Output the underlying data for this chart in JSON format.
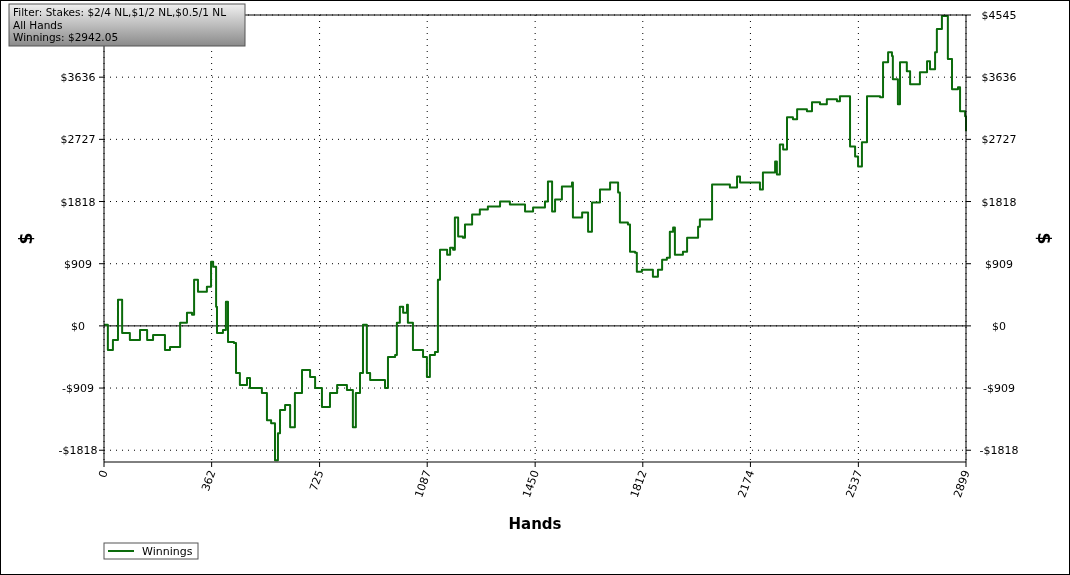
{
  "chart_data": {
    "type": "step",
    "xlabel": "Hands",
    "ylabel": "$",
    "y2label": "$",
    "annotations": [
      "Filter: Stakes: $2/4 NL,$1/2 NL,$0.5/1 NL",
      "All Hands",
      "Winnings: $2942.05"
    ],
    "xlim": [
      0,
      2899
    ],
    "xticks": [
      0,
      362,
      725,
      1087,
      1450,
      1812,
      2174,
      2537,
      2899
    ],
    "ylim": [
      -1990,
      4545
    ],
    "yticks": [
      {
        "value": -1818,
        "label": "-$1818"
      },
      {
        "value": -909,
        "label": "-$909"
      },
      {
        "value": 0,
        "label": "$0"
      },
      {
        "value": 909,
        "label": "$909"
      },
      {
        "value": 1818,
        "label": "$1818"
      },
      {
        "value": 2727,
        "label": "$2727"
      },
      {
        "value": 3636,
        "label": "$3636"
      },
      {
        "value": 4545,
        "label": null
      }
    ],
    "y2lim": [
      -1990,
      4545
    ],
    "y2ticks": [
      {
        "value": -1818,
        "label": "-$1818"
      },
      {
        "value": -909,
        "label": "-$909"
      },
      {
        "value": 0,
        "label": "$0"
      },
      {
        "value": 909,
        "label": "$909"
      },
      {
        "value": 1818,
        "label": "$1818"
      },
      {
        "value": 2727,
        "label": "$2727"
      },
      {
        "value": 3636,
        "label": "$3636"
      },
      {
        "value": 4545,
        "label": "$4545"
      }
    ],
    "grid": true,
    "legend": "bottom left",
    "line_style": "solid",
    "ref_lines": [
      {
        "axis": "y",
        "value": 0,
        "color": "#000000"
      }
    ],
    "series": [
      {
        "name": "Winnings",
        "color": "#0b6b0b",
        "x": [
          0,
          13,
          30,
          47,
          57,
          61,
          87,
          121,
          145,
          165,
          205,
          222,
          256,
          279,
          296,
          303,
          316,
          346,
          360,
          367,
          377,
          380,
          400,
          410,
          417,
          437,
          444,
          457,
          481,
          491,
          531,
          548,
          562,
          575,
          585,
          592,
          609,
          626,
          642,
          666,
          693,
          710,
          733,
          760,
          784,
          817,
          837,
          847,
          861,
          871,
          884,
          895,
          945,
          955,
          979,
          985,
          995,
          1006,
          1019,
          1022,
          1039,
          1073,
          1086,
          1096,
          1113,
          1123,
          1130,
          1154,
          1164,
          1174,
          1180,
          1191,
          1207,
          1214,
          1238,
          1264,
          1291,
          1332,
          1365,
          1399,
          1416,
          1443,
          1483,
          1493,
          1507,
          1517,
          1540,
          1574,
          1577,
          1608,
          1628,
          1641,
          1668,
          1702,
          1712,
          1729,
          1735,
          1762,
          1769,
          1786,
          1792,
          1809,
          1846,
          1863,
          1877,
          1893,
          1903,
          1914,
          1920,
          1947,
          1961,
          1998,
          2004,
          2038,
          2045,
          2105,
          2129,
          2139,
          2206,
          2216,
          2257,
          2263,
          2273,
          2284,
          2297,
          2317,
          2331,
          2364,
          2381,
          2408,
          2431,
          2465,
          2475,
          2502,
          2509,
          2526,
          2536,
          2549,
          2566,
          2610,
          2620,
          2637,
          2650,
          2653,
          2670,
          2677,
          2700,
          2711,
          2744,
          2768,
          2778,
          2795,
          2801,
          2818,
          2835,
          2838,
          2852,
          2872,
          2879,
          2896,
          2899
        ],
        "values": [
          15,
          -352,
          -205,
          381,
          381,
          -103,
          -205,
          -59,
          -205,
          -132,
          -352,
          -308,
          44,
          191,
          161,
          674,
          498,
          572,
          938,
          865,
          279,
          -103,
          -59,
          352,
          -235,
          -249,
          -689,
          -865,
          -762,
          -909,
          -982,
          -1378,
          -1422,
          -1964,
          -1569,
          -1231,
          -1158,
          -1481,
          -982,
          -645,
          -748,
          -909,
          -1187,
          -982,
          -865,
          -938,
          -1481,
          -982,
          -689,
          15,
          -689,
          -792,
          -909,
          -454,
          -425,
          44,
          279,
          191,
          308,
          44,
          -352,
          -454,
          -748,
          -425,
          -381,
          674,
          1114,
          1041,
          1143,
          1114,
          1583,
          1305,
          1290,
          1481,
          1627,
          1701,
          1745,
          1818,
          1774,
          1774,
          1671,
          1730,
          1818,
          2111,
          1671,
          1847,
          2038,
          2096,
          1583,
          1657,
          1378,
          1803,
          1994,
          2096,
          2096,
          1950,
          1510,
          1481,
          1085,
          1070,
          792,
          821,
          718,
          821,
          968,
          997,
          1378,
          1437,
          1041,
          1085,
          1290,
          1451,
          1554,
          1554,
          2067,
          2023,
          2184,
          2096,
          1994,
          2243,
          2404,
          2214,
          2653,
          2580,
          3049,
          3020,
          3167,
          3137,
          3269,
          3240,
          3313,
          3284,
          3357,
          3357,
          2624,
          2478,
          2331,
          2683,
          3357,
          3342,
          3856,
          4002,
          3944,
          3606,
          3240,
          3856,
          3724,
          3533,
          3709,
          3870,
          3753,
          4002,
          4339,
          4530,
          4530,
          3900,
          3460,
          3489,
          3137,
          3064,
          2844
        ]
      }
    ]
  }
}
